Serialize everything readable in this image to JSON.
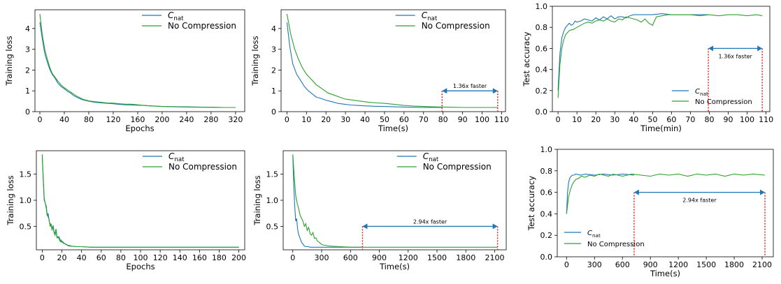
{
  "colors": {
    "c_nat": "#1f77b4",
    "no_compression": "#2ca02c",
    "annotation_arrow": "#1f77b4",
    "annotation_line": "#d62728"
  },
  "legend": {
    "c_nat_base": "C",
    "c_nat_sub": "nat",
    "no_compression": "No Compression"
  },
  "chart_data": [
    {
      "type": "line",
      "xlabel": "Epochs",
      "ylabel": "Training loss",
      "xlim": [
        -8,
        335
      ],
      "ylim": [
        0,
        4.9
      ],
      "xticks": [
        0,
        40,
        80,
        120,
        160,
        200,
        240,
        280,
        320
      ],
      "yticks": [
        0,
        1,
        2,
        3,
        4
      ],
      "legend_position": "top-right",
      "series": [
        {
          "key": "c_nat",
          "x": [
            0,
            4,
            8,
            12,
            16,
            20,
            25,
            30,
            35,
            40,
            45,
            50,
            55,
            60,
            65,
            70,
            80,
            90,
            100,
            110,
            120,
            130,
            140,
            150,
            160,
            170,
            180,
            200,
            220,
            240,
            260,
            280,
            300,
            320
          ],
          "y": [
            4.3,
            3.5,
            2.8,
            2.4,
            2.05,
            1.8,
            1.6,
            1.35,
            1.2,
            1.1,
            0.98,
            0.9,
            0.78,
            0.7,
            0.63,
            0.57,
            0.5,
            0.45,
            0.42,
            0.4,
            0.38,
            0.35,
            0.33,
            0.32,
            0.31,
            0.3,
            0.28,
            0.25,
            0.24,
            0.23,
            0.22,
            0.21,
            0.2,
            0.2
          ]
        },
        {
          "key": "no_compression",
          "x": [
            0,
            4,
            8,
            12,
            16,
            20,
            25,
            30,
            35,
            40,
            45,
            50,
            55,
            60,
            65,
            70,
            80,
            90,
            100,
            110,
            120,
            130,
            140,
            150,
            160,
            170,
            180,
            200,
            220,
            240,
            260,
            280,
            300,
            320
          ],
          "y": [
            4.7,
            3.7,
            3.0,
            2.55,
            2.15,
            1.85,
            1.65,
            1.45,
            1.28,
            1.15,
            1.05,
            0.95,
            0.85,
            0.75,
            0.68,
            0.6,
            0.52,
            0.48,
            0.45,
            0.42,
            0.41,
            0.38,
            0.36,
            0.36,
            0.33,
            0.3,
            0.28,
            0.25,
            0.23,
            0.22,
            0.21,
            0.21,
            0.2,
            0.2
          ]
        }
      ]
    },
    {
      "type": "line",
      "xlabel": "Time(s)",
      "ylabel": "Training loss",
      "xlim": [
        -3,
        112
      ],
      "ylim": [
        0,
        4.9
      ],
      "xticks": [
        0,
        10,
        20,
        30,
        40,
        50,
        60,
        70,
        80,
        90,
        100,
        110
      ],
      "yticks": [
        0,
        1,
        2,
        3,
        4
      ],
      "legend_position": "top-right",
      "annotation": {
        "text": "1.36x faster",
        "x_start": 79.5,
        "x_end": 108,
        "y": 1.0
      },
      "series": [
        {
          "key": "c_nat",
          "x": [
            0,
            1.5,
            3,
            5,
            7,
            9,
            11,
            13,
            15,
            17,
            20,
            23,
            26,
            30,
            33,
            36,
            40,
            45,
            50,
            55,
            60,
            65,
            70,
            75,
            79.5
          ],
          "y": [
            4.3,
            3.1,
            2.3,
            1.8,
            1.5,
            1.2,
            1.0,
            0.85,
            0.7,
            0.65,
            0.55,
            0.48,
            0.4,
            0.35,
            0.32,
            0.3,
            0.28,
            0.26,
            0.25,
            0.23,
            0.22,
            0.21,
            0.2,
            0.2,
            0.2
          ]
        },
        {
          "key": "no_compression",
          "x": [
            0,
            2,
            4,
            6,
            8,
            10,
            12,
            15,
            18,
            21,
            24,
            27,
            30,
            34,
            38,
            42,
            46,
            50,
            55,
            60,
            65,
            70,
            75,
            80,
            85,
            90,
            95,
            100,
            108
          ],
          "y": [
            4.7,
            3.7,
            3.0,
            2.5,
            2.1,
            1.8,
            1.6,
            1.3,
            1.1,
            0.9,
            0.8,
            0.7,
            0.6,
            0.55,
            0.5,
            0.45,
            0.42,
            0.4,
            0.35,
            0.3,
            0.27,
            0.25,
            0.23,
            0.22,
            0.21,
            0.2,
            0.2,
            0.2,
            0.2
          ]
        }
      ]
    },
    {
      "type": "line",
      "xlabel": "Time(min)",
      "ylabel": "Test accuracy",
      "xlim": [
        -3,
        112
      ],
      "ylim": [
        0,
        1.0
      ],
      "xticks": [
        0,
        10,
        20,
        30,
        40,
        50,
        60,
        70,
        80,
        90,
        100,
        110
      ],
      "yticks": [
        0.0,
        0.2,
        0.4,
        0.6,
        0.8,
        1.0
      ],
      "legend_position": "lower-right",
      "annotation": {
        "text": "1.36x faster",
        "x_start": 79.5,
        "x_end": 108,
        "y": 0.6
      },
      "series": [
        {
          "key": "c_nat",
          "x": [
            0,
            1,
            2,
            3,
            4,
            5,
            6,
            7,
            8,
            9,
            10,
            12,
            14,
            16,
            18,
            20,
            22,
            24,
            26,
            28,
            30,
            32,
            34,
            36,
            38,
            40,
            45,
            50,
            55,
            60,
            65,
            70,
            75,
            79.5
          ],
          "y": [
            0.2,
            0.55,
            0.7,
            0.76,
            0.8,
            0.82,
            0.84,
            0.82,
            0.83,
            0.86,
            0.85,
            0.86,
            0.88,
            0.87,
            0.86,
            0.89,
            0.87,
            0.9,
            0.88,
            0.91,
            0.88,
            0.9,
            0.9,
            0.89,
            0.91,
            0.92,
            0.92,
            0.92,
            0.93,
            0.92,
            0.92,
            0.92,
            0.92,
            0.92
          ]
        },
        {
          "key": "no_compression",
          "x": [
            0,
            1,
            2,
            3,
            4,
            5,
            6,
            8,
            10,
            12,
            14,
            16,
            18,
            20,
            22,
            24,
            26,
            28,
            30,
            32,
            34,
            36,
            38,
            40,
            42,
            44,
            46,
            48,
            50,
            52,
            55,
            58,
            62,
            66,
            70,
            75,
            80,
            85,
            90,
            95,
            100,
            105,
            108
          ],
          "y": [
            0.13,
            0.45,
            0.6,
            0.68,
            0.73,
            0.75,
            0.77,
            0.78,
            0.8,
            0.82,
            0.84,
            0.85,
            0.84,
            0.86,
            0.87,
            0.86,
            0.88,
            0.86,
            0.85,
            0.88,
            0.87,
            0.9,
            0.89,
            0.88,
            0.87,
            0.85,
            0.88,
            0.84,
            0.82,
            0.9,
            0.91,
            0.92,
            0.92,
            0.92,
            0.92,
            0.91,
            0.92,
            0.91,
            0.92,
            0.92,
            0.91,
            0.92,
            0.91
          ]
        }
      ]
    },
    {
      "type": "line",
      "xlabel": "Epochs",
      "ylabel": "Training loss",
      "xlim": [
        -6,
        206
      ],
      "ylim": [
        0.05,
        1.95
      ],
      "xticks": [
        0,
        20,
        40,
        60,
        80,
        100,
        120,
        140,
        160,
        180,
        200
      ],
      "yticks": [
        0.5,
        1.0,
        1.5
      ],
      "legend_position": "top-right",
      "series": [
        {
          "key": "c_nat",
          "x": [
            0,
            1,
            2,
            3,
            4,
            5,
            6,
            7,
            8,
            9,
            10,
            11,
            12,
            13,
            14,
            15,
            16,
            17,
            18,
            19,
            20,
            22,
            24,
            26,
            28,
            30,
            35,
            40,
            50,
            60,
            80,
            100,
            150,
            200
          ],
          "y": [
            1.85,
            1.4,
            1.0,
            0.95,
            0.85,
            0.7,
            0.75,
            0.6,
            0.55,
            0.5,
            0.45,
            0.52,
            0.4,
            0.35,
            0.45,
            0.3,
            0.28,
            0.3,
            0.25,
            0.2,
            0.22,
            0.18,
            0.15,
            0.14,
            0.13,
            0.12,
            0.11,
            0.11,
            0.1,
            0.1,
            0.1,
            0.1,
            0.1,
            0.1
          ]
        },
        {
          "key": "no_compression",
          "x": [
            0,
            1,
            2,
            3,
            4,
            5,
            6,
            7,
            8,
            9,
            10,
            11,
            12,
            13,
            14,
            15,
            16,
            17,
            18,
            19,
            20,
            22,
            24,
            26,
            28,
            30,
            35,
            40,
            50,
            60,
            80,
            100,
            150,
            200
          ],
          "y": [
            1.88,
            1.45,
            1.05,
            0.93,
            0.9,
            0.72,
            0.68,
            0.63,
            0.5,
            0.55,
            0.42,
            0.5,
            0.38,
            0.33,
            0.42,
            0.28,
            0.3,
            0.27,
            0.22,
            0.24,
            0.2,
            0.17,
            0.16,
            0.13,
            0.12,
            0.12,
            0.11,
            0.11,
            0.1,
            0.1,
            0.1,
            0.1,
            0.1,
            0.1
          ]
        }
      ]
    },
    {
      "type": "line",
      "xlabel": "Time(s)",
      "ylabel": "Training loss",
      "xlim": [
        -100,
        2220
      ],
      "ylim": [
        0.05,
        1.95
      ],
      "xticks": [
        0,
        300,
        600,
        900,
        1200,
        1500,
        1800,
        2100
      ],
      "yticks": [
        0.5,
        1.0,
        1.5
      ],
      "legend_position": "top-right",
      "annotation": {
        "text": "2.94x faster",
        "x_start": 725,
        "x_end": 2130,
        "y": 0.5
      },
      "series": [
        {
          "key": "c_nat",
          "x": [
            0,
            10,
            20,
            30,
            40,
            50,
            60,
            70,
            80,
            90,
            100,
            110,
            120,
            140,
            160,
            180,
            200,
            250,
            300,
            400,
            500,
            600,
            725
          ],
          "y": [
            1.85,
            1.3,
            0.9,
            0.6,
            0.65,
            0.45,
            0.35,
            0.3,
            0.25,
            0.2,
            0.17,
            0.15,
            0.12,
            0.11,
            0.11,
            0.1,
            0.1,
            0.1,
            0.1,
            0.1,
            0.1,
            0.1,
            0.1
          ]
        },
        {
          "key": "no_compression",
          "x": [
            0,
            15,
            30,
            45,
            60,
            75,
            90,
            105,
            120,
            135,
            150,
            165,
            180,
            195,
            210,
            225,
            240,
            255,
            270,
            285,
            300,
            350,
            400,
            500,
            600,
            800,
            1000,
            1200,
            1500,
            1800,
            2130
          ],
          "y": [
            1.88,
            1.45,
            1.1,
            0.95,
            0.85,
            0.72,
            0.66,
            0.6,
            0.5,
            0.55,
            0.42,
            0.48,
            0.36,
            0.33,
            0.38,
            0.27,
            0.28,
            0.22,
            0.2,
            0.18,
            0.15,
            0.13,
            0.12,
            0.11,
            0.1,
            0.1,
            0.1,
            0.1,
            0.1,
            0.1,
            0.1
          ]
        }
      ]
    },
    {
      "type": "line",
      "xlabel": "Time(s)",
      "ylabel": "Test accuracy",
      "xlim": [
        -100,
        2220
      ],
      "ylim": [
        0.0,
        1.0
      ],
      "xticks": [
        0,
        300,
        600,
        900,
        1200,
        1500,
        1800,
        2100
      ],
      "yticks": [
        0.0,
        0.2,
        0.4,
        0.6,
        0.8,
        1.0
      ],
      "legend_position": "lower-left",
      "annotation": {
        "text": "2.94x faster",
        "x_start": 725,
        "x_end": 2130,
        "y": 0.6
      },
      "series": [
        {
          "key": "c_nat",
          "x": [
            0,
            10,
            20,
            30,
            40,
            50,
            60,
            80,
            100,
            150,
            200,
            300,
            400,
            500,
            600,
            725
          ],
          "y": [
            0.4,
            0.6,
            0.68,
            0.72,
            0.74,
            0.75,
            0.76,
            0.76,
            0.77,
            0.76,
            0.77,
            0.76,
            0.77,
            0.76,
            0.77,
            0.76
          ]
        },
        {
          "key": "no_compression",
          "x": [
            0,
            20,
            40,
            60,
            80,
            100,
            130,
            160,
            200,
            250,
            300,
            350,
            400,
            450,
            500,
            550,
            600,
            700,
            800,
            900,
            1000,
            1100,
            1200,
            1300,
            1400,
            1500,
            1600,
            1700,
            1800,
            1900,
            2000,
            2130
          ],
          "y": [
            0.4,
            0.55,
            0.62,
            0.67,
            0.7,
            0.72,
            0.73,
            0.75,
            0.74,
            0.76,
            0.75,
            0.77,
            0.76,
            0.75,
            0.77,
            0.76,
            0.75,
            0.77,
            0.76,
            0.75,
            0.77,
            0.76,
            0.77,
            0.75,
            0.77,
            0.76,
            0.77,
            0.75,
            0.77,
            0.76,
            0.77,
            0.76
          ]
        }
      ]
    }
  ]
}
